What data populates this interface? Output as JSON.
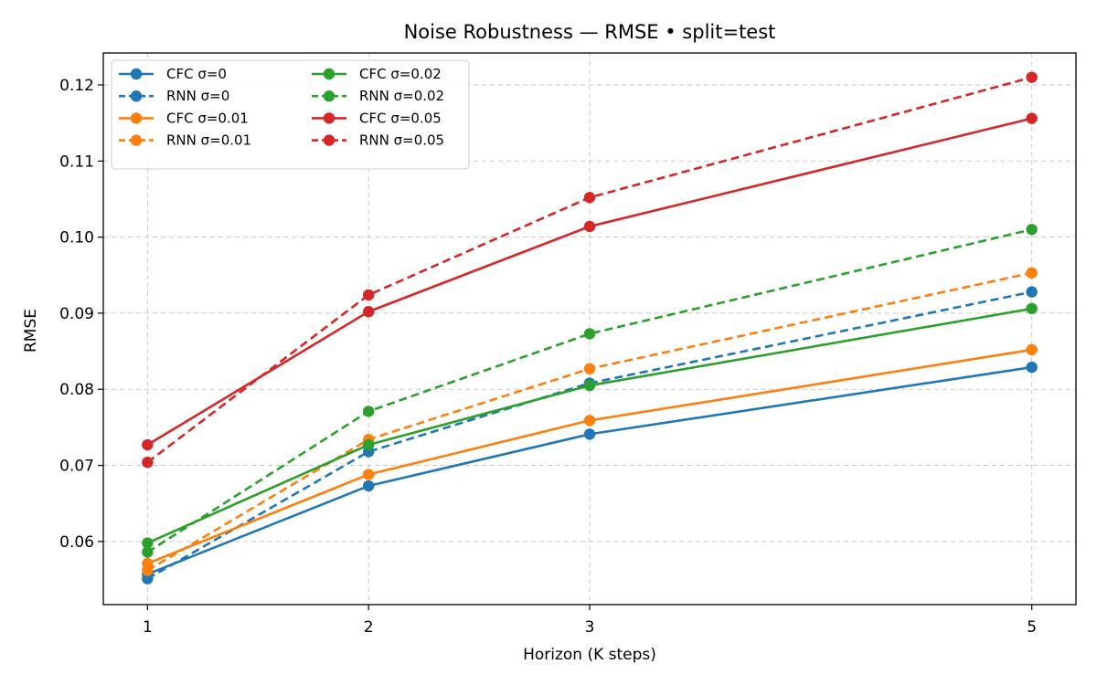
{
  "chart_data": {
    "type": "line",
    "title": "Noise Robustness — RMSE  •  split=test",
    "xlabel": "Horizon (K steps)",
    "ylabel": "RMSE",
    "x": [
      1,
      2,
      3,
      5
    ],
    "xticks": [
      "1",
      "2",
      "3",
      "5"
    ],
    "xlim": [
      0.8,
      5.2
    ],
    "ylim": [
      0.0517,
      0.1242
    ],
    "yticks": [
      "0.06",
      "0.07",
      "0.08",
      "0.09",
      "0.10",
      "0.11",
      "0.12"
    ],
    "ytick_values": [
      0.06,
      0.07,
      0.08,
      0.09,
      0.1,
      0.11,
      0.12
    ],
    "grid": true,
    "legend_position": "top-left",
    "series": [
      {
        "name": "CFC σ=0",
        "color": "#1f77b4",
        "style": "solid",
        "values": [
          0.0557,
          0.0673,
          0.0741,
          0.0829
        ]
      },
      {
        "name": "RNN σ=0",
        "color": "#1f77b4",
        "style": "dashed",
        "values": [
          0.0551,
          0.0718,
          0.0808,
          0.0928
        ]
      },
      {
        "name": "CFC σ=0.01",
        "color": "#ff7f0e",
        "style": "solid",
        "values": [
          0.0571,
          0.0688,
          0.0759,
          0.0852
        ]
      },
      {
        "name": "RNN σ=0.01",
        "color": "#ff7f0e",
        "style": "dashed",
        "values": [
          0.0562,
          0.0734,
          0.0827,
          0.0953
        ]
      },
      {
        "name": "CFC σ=0.02",
        "color": "#2ca02c",
        "style": "solid",
        "values": [
          0.0598,
          0.0727,
          0.0805,
          0.0906
        ]
      },
      {
        "name": "RNN σ=0.02",
        "color": "#2ca02c",
        "style": "dashed",
        "values": [
          0.0586,
          0.0771,
          0.0873,
          0.101
        ]
      },
      {
        "name": "CFC σ=0.05",
        "color": "#d62728",
        "style": "solid",
        "values": [
          0.0727,
          0.0902,
          0.1014,
          0.1156
        ]
      },
      {
        "name": "RNN σ=0.05",
        "color": "#d62728",
        "style": "dashed",
        "values": [
          0.0704,
          0.0924,
          0.1052,
          0.121
        ]
      }
    ]
  }
}
